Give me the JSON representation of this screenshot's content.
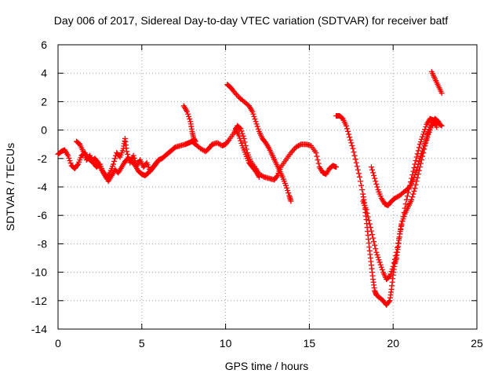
{
  "chart_data": {
    "type": "scatter",
    "title": "Day 006 of 2017, Sidereal Day-to-day VTEC variation (SDTVAR) for receiver batf",
    "xlabel": "GPS time / hours",
    "ylabel": "SDTVAR / TECUs",
    "xlim": [
      0,
      25
    ],
    "ylim": [
      -14,
      6
    ],
    "xticks": [
      0,
      5,
      10,
      15,
      20,
      25
    ],
    "yticks": [
      -14,
      -12,
      -10,
      -8,
      -6,
      -4,
      -2,
      0,
      2,
      4,
      6
    ],
    "grid": true,
    "marker": "plus",
    "color": "#ff0000",
    "series": [
      {
        "points": [
          [
            0.0,
            -1.7
          ],
          [
            0.2,
            -1.5
          ],
          [
            0.4,
            -1.4
          ],
          [
            0.6,
            -1.8
          ],
          [
            0.8,
            -2.5
          ],
          [
            1.0,
            -2.7
          ],
          [
            1.2,
            -2.4
          ],
          [
            1.4,
            -1.8
          ],
          [
            1.6,
            -1.6
          ],
          [
            1.8,
            -2.0
          ],
          [
            2.0,
            -2.2
          ],
          [
            2.2,
            -2.0
          ],
          [
            2.4,
            -2.3
          ],
          [
            2.6,
            -2.8
          ],
          [
            2.8,
            -3.1
          ],
          [
            3.0,
            -3.6
          ],
          [
            3.2,
            -3.2
          ],
          [
            3.4,
            -2.8
          ],
          [
            3.6,
            -3.0
          ],
          [
            3.8,
            -2.6
          ],
          [
            4.0,
            -2.2
          ],
          [
            4.2,
            -2.0
          ],
          [
            4.4,
            -2.2
          ],
          [
            4.6,
            -2.5
          ],
          [
            4.8,
            -2.9
          ],
          [
            5.0,
            -3.1
          ],
          [
            5.2,
            -3.2
          ],
          [
            5.4,
            -3.0
          ],
          [
            5.6,
            -2.7
          ],
          [
            5.8,
            -2.4
          ],
          [
            6.0,
            -2.1
          ],
          [
            6.2,
            -2.0
          ],
          [
            6.4,
            -1.8
          ],
          [
            6.6,
            -1.6
          ],
          [
            6.8,
            -1.4
          ],
          [
            7.0,
            -1.2
          ],
          [
            7.3,
            -1.1
          ],
          [
            7.6,
            -1.0
          ],
          [
            7.8,
            -0.9
          ],
          [
            8.0,
            -0.8
          ],
          [
            8.2,
            -1.0
          ],
          [
            8.5,
            -1.3
          ],
          [
            8.8,
            -1.5
          ],
          [
            9.0,
            -1.3
          ],
          [
            9.2,
            -1.0
          ],
          [
            9.5,
            -0.9
          ],
          [
            9.8,
            -1.1
          ],
          [
            10.0,
            -1.0
          ],
          [
            10.2,
            -0.7
          ],
          [
            10.5,
            -0.2
          ],
          [
            10.7,
            0.3
          ],
          [
            10.9,
            0.1
          ],
          [
            11.1,
            -0.6
          ],
          [
            11.3,
            -1.6
          ],
          [
            11.5,
            -2.2
          ],
          [
            11.8,
            -2.7
          ],
          [
            12.0,
            -3.1
          ],
          [
            12.3,
            -3.3
          ],
          [
            12.6,
            -3.4
          ],
          [
            12.9,
            -3.5
          ],
          [
            13.1,
            -3.2
          ],
          [
            13.3,
            -2.6
          ],
          [
            13.6,
            -2.1
          ],
          [
            13.9,
            -1.6
          ],
          [
            14.2,
            -1.2
          ],
          [
            14.5,
            -1.0
          ],
          [
            14.8,
            -1.0
          ],
          [
            15.1,
            -1.1
          ],
          [
            15.4,
            -1.6
          ],
          [
            15.6,
            -2.6
          ],
          [
            15.8,
            -3.0
          ],
          [
            16.0,
            -3.1
          ],
          [
            16.2,
            -2.7
          ],
          [
            16.4,
            -2.5
          ],
          [
            16.6,
            -2.6
          ]
        ]
      },
      {
        "points": [
          [
            1.1,
            -0.8
          ],
          [
            1.3,
            -1.0
          ],
          [
            1.5,
            -1.5
          ],
          [
            1.7,
            -2.1
          ],
          [
            1.9,
            -1.8
          ],
          [
            2.1,
            -2.3
          ],
          [
            2.3,
            -2.6
          ],
          [
            2.5,
            -2.4
          ],
          [
            2.7,
            -3.0
          ],
          [
            2.9,
            -3.4
          ],
          [
            3.1,
            -3.0
          ],
          [
            3.3,
            -2.4
          ],
          [
            3.5,
            -1.6
          ],
          [
            3.7,
            -1.9
          ],
          [
            3.9,
            -1.3
          ],
          [
            4.0,
            -0.6
          ],
          [
            4.1,
            -1.5
          ],
          [
            4.3,
            -2.3
          ],
          [
            4.5,
            -1.8
          ],
          [
            4.7,
            -2.5
          ],
          [
            4.9,
            -2.1
          ],
          [
            5.1,
            -2.6
          ],
          [
            5.3,
            -2.3
          ],
          [
            5.5,
            -2.9
          ],
          [
            5.7,
            -2.6
          ],
          [
            5.9,
            -2.3
          ]
        ]
      },
      {
        "points": [
          [
            7.5,
            1.7
          ],
          [
            7.7,
            1.3
          ],
          [
            7.9,
            0.6
          ],
          [
            8.0,
            -0.1
          ],
          [
            8.1,
            -0.6
          ],
          [
            8.2,
            -0.8
          ]
        ]
      },
      {
        "points": [
          [
            10.1,
            3.2
          ],
          [
            10.3,
            3.0
          ],
          [
            10.5,
            2.7
          ],
          [
            10.8,
            2.3
          ],
          [
            11.1,
            2.0
          ],
          [
            11.4,
            1.7
          ],
          [
            11.6,
            1.3
          ],
          [
            11.8,
            0.6
          ],
          [
            12.0,
            -0.1
          ],
          [
            12.2,
            -0.6
          ],
          [
            12.4,
            -0.9
          ],
          [
            12.6,
            -1.3
          ],
          [
            12.8,
            -1.8
          ],
          [
            13.0,
            -2.3
          ],
          [
            13.2,
            -2.8
          ],
          [
            13.4,
            -3.3
          ],
          [
            13.6,
            -3.9
          ],
          [
            13.8,
            -4.6
          ],
          [
            13.9,
            -5.0
          ]
        ]
      },
      {
        "points": [
          [
            10.6,
            0.1
          ],
          [
            10.8,
            -0.4
          ],
          [
            11.0,
            -1.1
          ],
          [
            11.2,
            -1.7
          ],
          [
            11.4,
            -2.3
          ],
          [
            11.6,
            -2.6
          ],
          [
            11.8,
            -2.9
          ],
          [
            12.0,
            -3.3
          ]
        ]
      },
      {
        "points": [
          [
            16.6,
            1.0
          ],
          [
            16.8,
            1.0
          ],
          [
            17.0,
            0.8
          ],
          [
            17.2,
            0.3
          ],
          [
            17.4,
            -0.5
          ],
          [
            17.6,
            -1.3
          ],
          [
            17.8,
            -2.3
          ],
          [
            18.0,
            -3.3
          ],
          [
            18.2,
            -4.5
          ],
          [
            18.3,
            -5.3
          ],
          [
            18.4,
            -6.3
          ],
          [
            18.5,
            -7.4
          ],
          [
            18.6,
            -8.5
          ],
          [
            18.7,
            -9.5
          ],
          [
            18.8,
            -10.5
          ],
          [
            18.9,
            -11.3
          ],
          [
            19.0,
            -11.6
          ],
          [
            19.2,
            -11.8
          ],
          [
            19.4,
            -12.0
          ],
          [
            19.6,
            -12.3
          ],
          [
            19.8,
            -12.0
          ],
          [
            19.9,
            -11.2
          ],
          [
            20.0,
            -10.2
          ],
          [
            20.1,
            -9.4
          ],
          [
            20.2,
            -9.0
          ],
          [
            20.3,
            -8.2
          ],
          [
            20.4,
            -7.3
          ],
          [
            20.5,
            -6.6
          ],
          [
            20.7,
            -5.9
          ],
          [
            20.9,
            -5.4
          ],
          [
            21.1,
            -4.9
          ],
          [
            21.3,
            -4.1
          ],
          [
            21.5,
            -3.1
          ],
          [
            21.7,
            -2.1
          ],
          [
            21.9,
            -1.1
          ],
          [
            22.1,
            -0.3
          ],
          [
            22.3,
            0.3
          ],
          [
            22.5,
            0.6
          ],
          [
            22.7,
            0.5
          ],
          [
            22.9,
            0.3
          ]
        ]
      },
      {
        "points": [
          [
            18.2,
            -5.0
          ],
          [
            18.4,
            -5.6
          ],
          [
            18.6,
            -6.6
          ],
          [
            18.8,
            -7.6
          ],
          [
            19.0,
            -8.6
          ],
          [
            19.2,
            -9.3
          ],
          [
            19.4,
            -10.0
          ],
          [
            19.6,
            -10.5
          ],
          [
            19.8,
            -10.3
          ],
          [
            20.0,
            -9.6
          ],
          [
            20.2,
            -8.6
          ],
          [
            20.4,
            -7.3
          ],
          [
            20.6,
            -6.1
          ],
          [
            20.8,
            -4.9
          ],
          [
            21.0,
            -3.9
          ],
          [
            21.2,
            -2.9
          ],
          [
            21.4,
            -1.9
          ],
          [
            21.6,
            -1.0
          ],
          [
            21.8,
            -0.3
          ],
          [
            22.0,
            0.4
          ],
          [
            22.2,
            0.8
          ],
          [
            22.4,
            0.7
          ],
          [
            22.6,
            0.2
          ]
        ]
      },
      {
        "points": [
          [
            18.7,
            -2.6
          ],
          [
            18.9,
            -3.4
          ],
          [
            19.1,
            -4.2
          ],
          [
            19.3,
            -4.8
          ],
          [
            19.5,
            -5.2
          ],
          [
            19.7,
            -5.3
          ],
          [
            19.9,
            -5.0
          ],
          [
            20.1,
            -4.8
          ],
          [
            20.4,
            -4.6
          ],
          [
            20.7,
            -4.3
          ],
          [
            21.0,
            -4.0
          ],
          [
            21.2,
            -3.5
          ],
          [
            21.4,
            -2.8
          ],
          [
            21.6,
            -2.0
          ],
          [
            21.8,
            -1.3
          ],
          [
            22.0,
            -0.6
          ],
          [
            22.1,
            -0.1
          ],
          [
            22.3,
            0.5
          ],
          [
            22.5,
            0.8
          ],
          [
            22.7,
            0.6
          ]
        ]
      },
      {
        "points": [
          [
            22.3,
            4.1
          ],
          [
            22.5,
            3.6
          ],
          [
            22.7,
            3.1
          ],
          [
            22.9,
            2.6
          ]
        ]
      }
    ]
  }
}
